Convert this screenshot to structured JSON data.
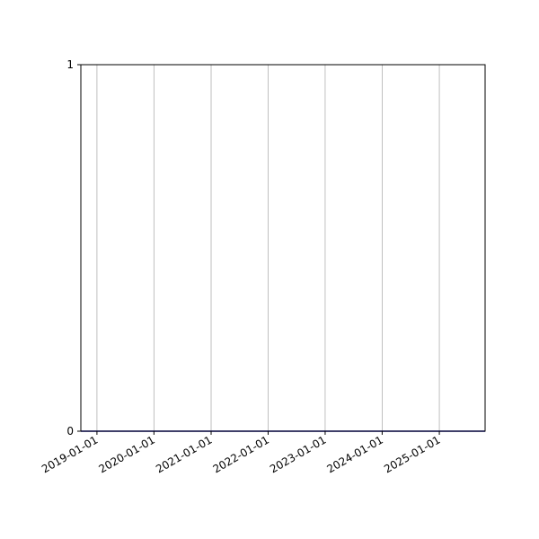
{
  "chart_data": {
    "type": "line",
    "title": "",
    "xlabel": "",
    "ylabel": "",
    "xlim": [
      "2018-09-20",
      "2025-10-21"
    ],
    "ylim": [
      0,
      1
    ],
    "x_ticks": [
      "2019-01-01",
      "2020-01-01",
      "2021-01-01",
      "2022-01-01",
      "2023-01-01",
      "2024-01-01",
      "2025-01-01"
    ],
    "y_ticks": [
      "0",
      "1"
    ],
    "grid": "x-axis vertical lines",
    "series": [
      {
        "x": [
          "2018-09-20",
          "2025-10-21"
        ],
        "y": [
          0,
          0
        ],
        "color": "#0000aa"
      }
    ]
  }
}
